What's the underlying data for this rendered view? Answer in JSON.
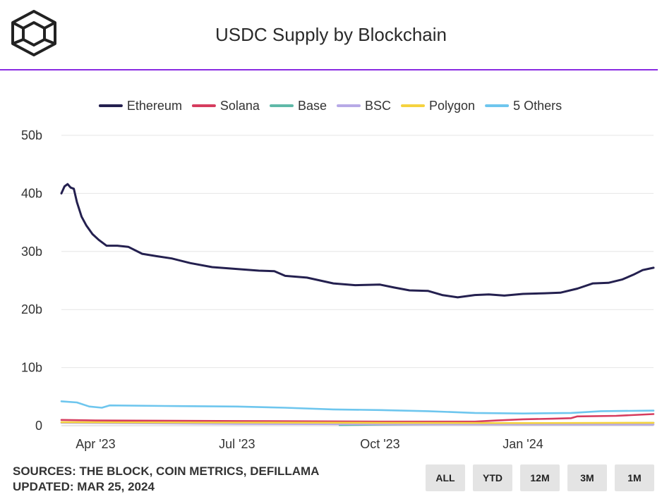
{
  "header": {
    "title": "USDC Supply by Blockchain"
  },
  "footer": {
    "sources": "SOURCES: THE BLOCK, COIN METRICS, DEFILLAMA",
    "updated": "UPDATED: MAR 25, 2024"
  },
  "range_buttons": [
    "ALL",
    "YTD",
    "12M",
    "3M",
    "1M"
  ],
  "colors": {
    "accent": "#8a2be2",
    "ethereum": "#24204f",
    "solana": "#d63c5e",
    "base": "#5fb9a8",
    "bsc": "#b7a9e6",
    "polygon": "#f5d33f",
    "others": "#6ec6ee"
  },
  "chart_data": {
    "type": "line",
    "title": "USDC Supply by Blockchain",
    "ylim": [
      0,
      50
    ],
    "y_ticks": [
      "0",
      "10b",
      "20b",
      "30b",
      "40b",
      "50b"
    ],
    "y_tick_values": [
      0,
      10,
      20,
      30,
      40,
      50
    ],
    "x_range": [
      "2023-03-10",
      "2024-03-25"
    ],
    "x_ticks": [
      {
        "label": "Apr '23",
        "date": "2023-04-01"
      },
      {
        "label": "Jul '23",
        "date": "2023-07-01"
      },
      {
        "label": "Oct '23",
        "date": "2023-10-01"
      },
      {
        "label": "Jan '24",
        "date": "2024-01-01"
      }
    ],
    "grid": true,
    "legend_position": "top",
    "series": [
      {
        "name": "Ethereum",
        "color": "#24204f",
        "points": [
          [
            "2023-03-10",
            40.0
          ],
          [
            "2023-03-12",
            41.2
          ],
          [
            "2023-03-14",
            41.6
          ],
          [
            "2023-03-16",
            41.0
          ],
          [
            "2023-03-18",
            40.8
          ],
          [
            "2023-03-20",
            38.5
          ],
          [
            "2023-03-23",
            36.0
          ],
          [
            "2023-03-26",
            34.5
          ],
          [
            "2023-03-30",
            33.0
          ],
          [
            "2023-04-03",
            32.0
          ],
          [
            "2023-04-08",
            31.0
          ],
          [
            "2023-04-15",
            31.0
          ],
          [
            "2023-04-22",
            30.8
          ],
          [
            "2023-05-01",
            29.6
          ],
          [
            "2023-05-10",
            29.2
          ],
          [
            "2023-05-20",
            28.8
          ],
          [
            "2023-06-01",
            28.0
          ],
          [
            "2023-06-15",
            27.3
          ],
          [
            "2023-06-30",
            27.0
          ],
          [
            "2023-07-15",
            26.7
          ],
          [
            "2023-07-25",
            26.6
          ],
          [
            "2023-08-01",
            25.8
          ],
          [
            "2023-08-15",
            25.5
          ],
          [
            "2023-09-01",
            24.5
          ],
          [
            "2023-09-15",
            24.2
          ],
          [
            "2023-10-01",
            24.3
          ],
          [
            "2023-10-10",
            23.8
          ],
          [
            "2023-10-20",
            23.3
          ],
          [
            "2023-11-01",
            23.2
          ],
          [
            "2023-11-10",
            22.5
          ],
          [
            "2023-11-20",
            22.1
          ],
          [
            "2023-12-01",
            22.5
          ],
          [
            "2023-12-10",
            22.6
          ],
          [
            "2023-12-20",
            22.4
          ],
          [
            "2024-01-01",
            22.7
          ],
          [
            "2024-01-15",
            22.8
          ],
          [
            "2024-01-25",
            22.9
          ],
          [
            "2024-02-05",
            23.6
          ],
          [
            "2024-02-15",
            24.5
          ],
          [
            "2024-02-25",
            24.6
          ],
          [
            "2024-03-05",
            25.2
          ],
          [
            "2024-03-12",
            26.0
          ],
          [
            "2024-03-18",
            26.8
          ],
          [
            "2024-03-25",
            27.2
          ]
        ]
      },
      {
        "name": "Solana",
        "color": "#d63c5e",
        "points": [
          [
            "2023-03-10",
            1.0
          ],
          [
            "2023-04-01",
            0.9
          ],
          [
            "2023-07-01",
            0.8
          ],
          [
            "2023-10-01",
            0.7
          ],
          [
            "2023-12-01",
            0.7
          ],
          [
            "2023-12-15",
            0.9
          ],
          [
            "2024-01-01",
            1.1
          ],
          [
            "2024-01-20",
            1.2
          ],
          [
            "2024-02-01",
            1.3
          ],
          [
            "2024-02-05",
            1.6
          ],
          [
            "2024-03-01",
            1.7
          ],
          [
            "2024-03-25",
            2.0
          ]
        ]
      },
      {
        "name": "Base",
        "color": "#5fb9a8",
        "points": [
          [
            "2023-09-05",
            0.1
          ],
          [
            "2023-10-01",
            0.2
          ],
          [
            "2023-12-01",
            0.3
          ],
          [
            "2024-02-01",
            0.4
          ],
          [
            "2024-03-25",
            0.5
          ]
        ]
      },
      {
        "name": "BSC",
        "color": "#b7a9e6",
        "points": [
          [
            "2023-03-10",
            0.5
          ],
          [
            "2023-07-01",
            0.3
          ],
          [
            "2023-10-01",
            0.25
          ],
          [
            "2024-03-25",
            0.2
          ]
        ]
      },
      {
        "name": "Polygon",
        "color": "#f5d33f",
        "points": [
          [
            "2023-03-10",
            0.6
          ],
          [
            "2023-07-01",
            0.55
          ],
          [
            "2023-10-01",
            0.5
          ],
          [
            "2024-01-01",
            0.45
          ],
          [
            "2024-03-25",
            0.5
          ]
        ]
      },
      {
        "name": "5 Others",
        "color": "#6ec6ee",
        "points": [
          [
            "2023-03-10",
            4.2
          ],
          [
            "2023-03-20",
            4.0
          ],
          [
            "2023-03-28",
            3.3
          ],
          [
            "2023-04-05",
            3.1
          ],
          [
            "2023-04-10",
            3.5
          ],
          [
            "2023-05-15",
            3.4
          ],
          [
            "2023-07-01",
            3.3
          ],
          [
            "2023-08-01",
            3.1
          ],
          [
            "2023-09-01",
            2.8
          ],
          [
            "2023-10-01",
            2.7
          ],
          [
            "2023-11-01",
            2.5
          ],
          [
            "2023-12-01",
            2.2
          ],
          [
            "2024-01-01",
            2.1
          ],
          [
            "2024-02-01",
            2.2
          ],
          [
            "2024-02-20",
            2.5
          ],
          [
            "2024-03-25",
            2.6
          ]
        ]
      }
    ]
  }
}
